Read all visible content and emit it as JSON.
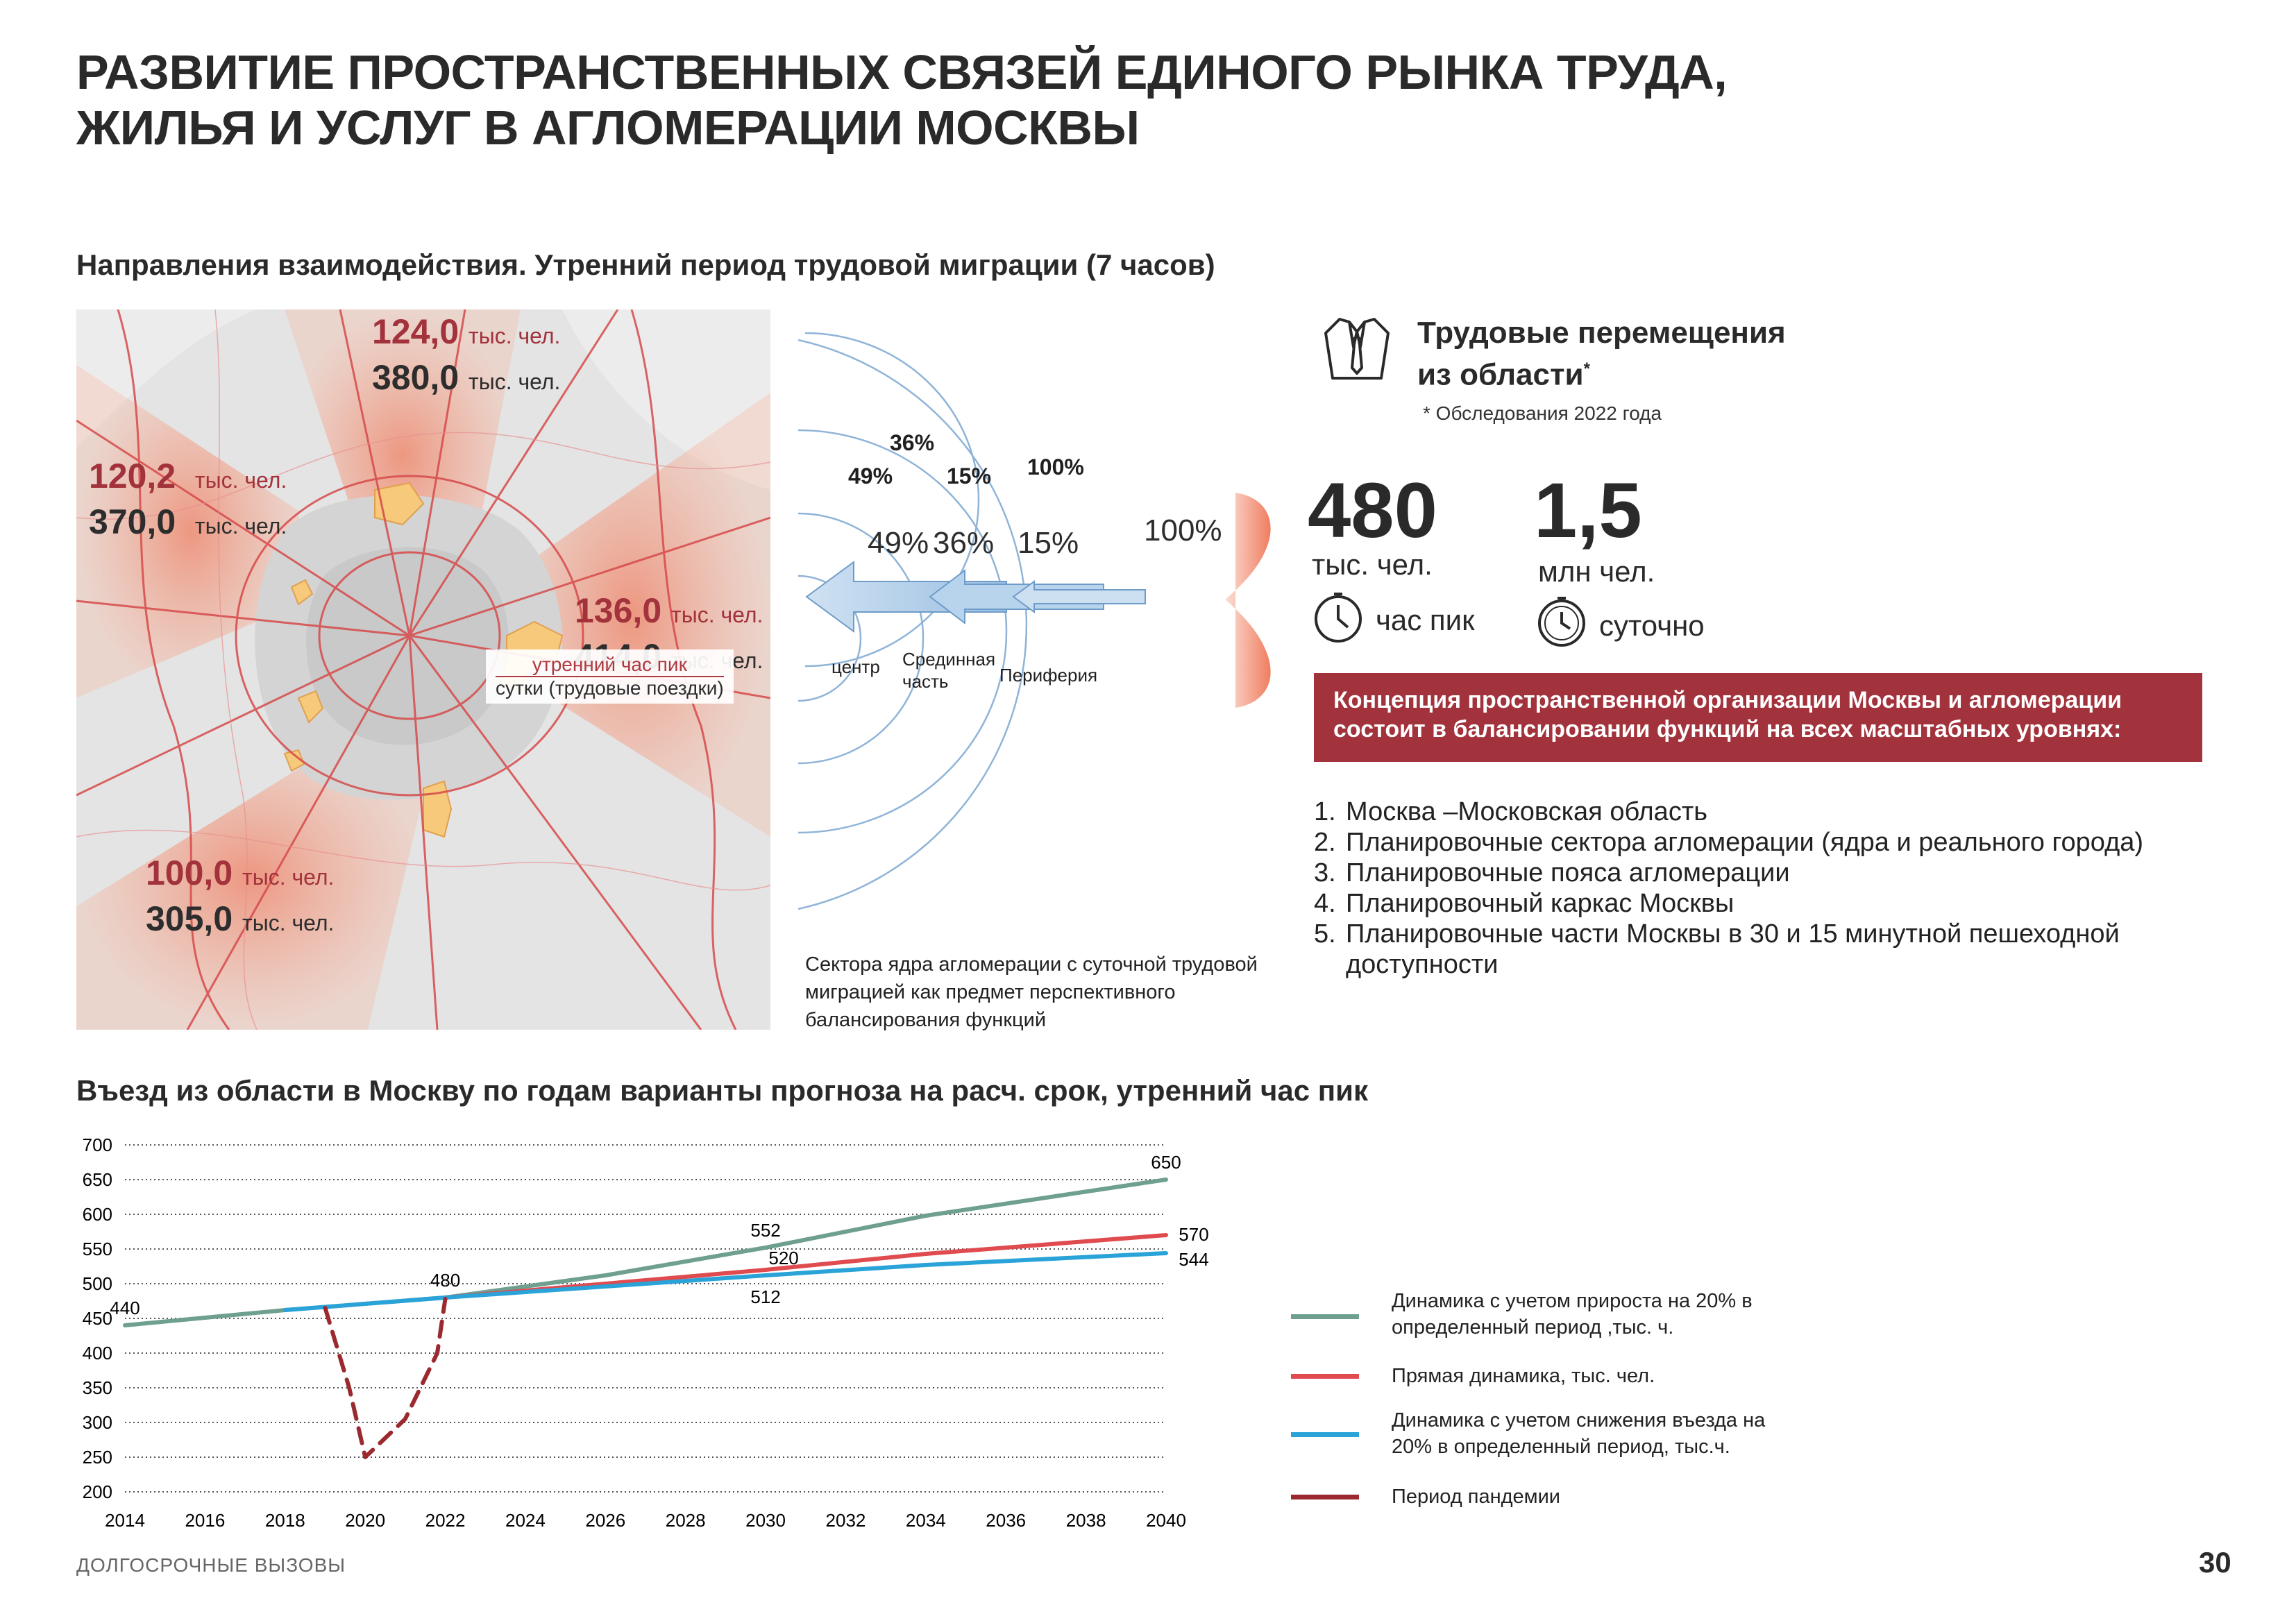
{
  "title_line1": "РАЗВИТИЕ ПРОСТРАНСТВЕННЫХ СВЯЗЕЙ ЕДИНОГО РЫНКА ТРУДА,",
  "title_line2": "ЖИЛЬЯ И УСЛУГ В АГЛОМЕРАЦИИ МОСКВЫ",
  "map_section": {
    "heading": "Направления взаимодействия. Утренний период трудовой миграции (7 часов)",
    "unit": "тыс. чел.",
    "north": {
      "peak": "124,0",
      "day": "380,0"
    },
    "west": {
      "peak": "120,2",
      "day": "370,0"
    },
    "east": {
      "peak": "136,0",
      "day": "414,0"
    },
    "southwest": {
      "peak": "100,0",
      "day": "305,0"
    },
    "legend_peak": "утренний час пик",
    "legend_day": "сутки (трудовые поездки)"
  },
  "zones_diagram": {
    "top_labels": {
      "p36": "36%",
      "p49": "49%",
      "p15": "15%",
      "p100": "100%"
    },
    "arrow_labels": {
      "p49": "49%",
      "p36": "36%",
      "p15": "15%",
      "p100": "100%"
    },
    "zone_center": "центр",
    "zone_mid_1": "Срединная",
    "zone_mid_2": "часть",
    "zone_periphery": "Периферия",
    "note": "Сектора ядра агломерации с суточной трудовой миграцией как предмет перспективного балансирования функций",
    "colors": {
      "blue": "#8fb4d8",
      "red": "#f08a70"
    }
  },
  "travel": {
    "heading_line1": "Трудовые перемещения",
    "heading_line2": "из области",
    "asterisk": "*",
    "footnote": "* Обследования 2022 года",
    "peak_value": "480",
    "peak_unit": "тыс. чел.",
    "peak_label": "час пик",
    "daily_value": "1,5",
    "daily_unit": "млн чел.",
    "daily_label": "суточно",
    "icons": [
      "shirt-icon",
      "clock-icon"
    ]
  },
  "concept": {
    "text_line1": "Концепция пространственной организации Москвы и агломерации",
    "text_line2": "состоит в  балансировании функций на всех масштабных уровнях:",
    "color": "#a2323b"
  },
  "levels": [
    {
      "num": "1.",
      "text": "Москва –Московская область"
    },
    {
      "num": "2.",
      "text": "Планировочные сектора агломерации (ядра и реального города)"
    },
    {
      "num": "3.",
      "text": "Планировочные пояса агломерации"
    },
    {
      "num": "4.",
      "text": "Планировочный каркас Москвы"
    },
    {
      "num": "5.",
      "text": "Планировочные части Москвы в 30 и 15 минутной пешеходной доступности"
    }
  ],
  "chart_heading": "Въезд из области в Москву по годам варианты прогноза на расч. срок, утренний час пик",
  "chart_data": {
    "type": "line",
    "title": "Въезд из области в Москву по годам варианты прогноза на расч. срок, утренний час пик",
    "xlabel": "",
    "ylabel": "",
    "xlim": [
      2014,
      2040
    ],
    "ylim": [
      200,
      700
    ],
    "x_ticks": [
      2014,
      2016,
      2018,
      2020,
      2022,
      2024,
      2026,
      2028,
      2030,
      2032,
      2034,
      2036,
      2038,
      2040
    ],
    "y_ticks": [
      200,
      250,
      300,
      350,
      400,
      450,
      500,
      550,
      600,
      650,
      700
    ],
    "grid": "horizontal dotted",
    "legend_position": "right",
    "series": [
      {
        "name": "Динамика с учетом прироста на 20% в определенный период ,тыс. ч.",
        "color": "#6fa08f",
        "points": [
          [
            2014,
            440
          ],
          [
            2018,
            462
          ],
          [
            2022,
            480
          ],
          [
            2026,
            512
          ],
          [
            2030,
            552
          ],
          [
            2034,
            598
          ],
          [
            2040,
            650
          ]
        ]
      },
      {
        "name": "Прямая динамика, тыс. чел.",
        "color": "#e04b50",
        "points": [
          [
            2022,
            480
          ],
          [
            2026,
            500
          ],
          [
            2030,
            520
          ],
          [
            2034,
            543
          ],
          [
            2040,
            570
          ]
        ]
      },
      {
        "name": "Динамика с учетом снижения въезда на 20% в определенный период, тыс.ч.",
        "color": "#2aa3d8",
        "points": [
          [
            2018,
            462
          ],
          [
            2022,
            480
          ],
          [
            2026,
            496
          ],
          [
            2030,
            512
          ],
          [
            2034,
            527
          ],
          [
            2040,
            544
          ]
        ]
      },
      {
        "name": "Период пандемии",
        "color": "#9b2a30",
        "dashed": true,
        "points": [
          [
            2019,
            465
          ],
          [
            2019.6,
            350
          ],
          [
            2020,
            250
          ],
          [
            2021,
            305
          ],
          [
            2021.8,
            400
          ],
          [
            2022,
            478
          ]
        ]
      }
    ],
    "data_labels": [
      {
        "x": 2014,
        "y": 440,
        "text": "440"
      },
      {
        "x": 2022,
        "y": 480,
        "text": "480"
      },
      {
        "x": 2030,
        "y": 552,
        "text": "552"
      },
      {
        "x": 2030,
        "y": 520,
        "text": "520"
      },
      {
        "x": 2030,
        "y": 512,
        "text": "512"
      },
      {
        "x": 2040,
        "y": 650,
        "text": "650"
      },
      {
        "x": 2040,
        "y": 570,
        "text": "570"
      },
      {
        "x": 2040,
        "y": 544,
        "text": "544"
      }
    ]
  },
  "footer": "ДОЛГОСРОЧНЫЕ ВЫЗОВЫ",
  "page_number": "30"
}
